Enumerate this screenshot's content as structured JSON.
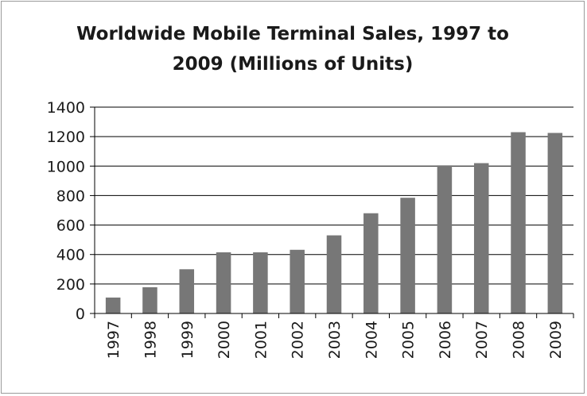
{
  "chart_data": {
    "type": "bar",
    "title_line1": "Worldwide Mobile Terminal Sales, 1997 to",
    "title_line2": "2009 (Millions of Units)",
    "xlabel": "",
    "ylabel": "",
    "categories": [
      "1997",
      "1998",
      "1999",
      "2000",
      "2001",
      "2002",
      "2003",
      "2004",
      "2005",
      "2006",
      "2007",
      "2008",
      "2009"
    ],
    "values": [
      108,
      178,
      300,
      415,
      415,
      432,
      530,
      680,
      785,
      1005,
      1020,
      1230,
      1225
    ],
    "ylim": [
      0,
      1400
    ],
    "yticks": [
      0,
      200,
      400,
      600,
      800,
      1000,
      1200,
      1400
    ],
    "grid": true,
    "legend": "none",
    "bar_color": "#777777"
  }
}
